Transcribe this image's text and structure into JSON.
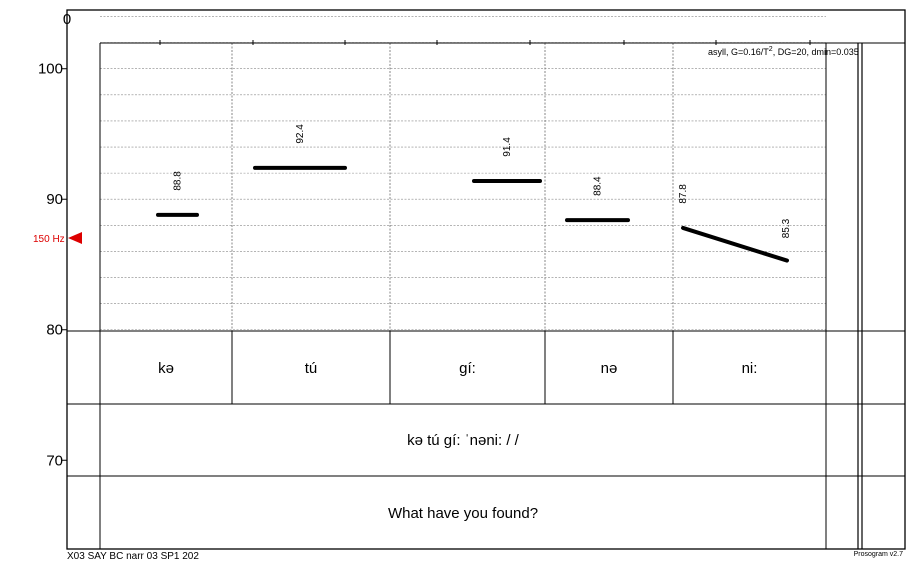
{
  "chart_data": {
    "type": "prosogram",
    "y_axis": {
      "top_tick_label": "0",
      "range": [
        63.2,
        104.5
      ],
      "tick_values": [
        70,
        80,
        90,
        100
      ],
      "tick_labels": [
        "70",
        "80",
        "90",
        "100"
      ],
      "minor_grid_step": 2
    },
    "reference_marker": {
      "label": "150 Hz",
      "value": 86.8,
      "color": "#dd0000"
    },
    "header_note": "asyll, G=0.16/T², DG=20, dmin=0.035",
    "syllables": [
      {
        "label": "kə",
        "start_value": 88.8,
        "end_value": 88.8,
        "labels": [
          "88.8"
        ]
      },
      {
        "label": "tú",
        "start_value": 92.4,
        "end_value": 92.4,
        "labels": [
          "92.4"
        ]
      },
      {
        "label": "gí:",
        "start_value": 91.4,
        "end_value": 91.4,
        "labels": [
          "91.4"
        ]
      },
      {
        "label": "nə",
        "start_value": 88.4,
        "end_value": 88.4,
        "labels": [
          "88.4"
        ]
      },
      {
        "label": "ni:",
        "start_value": 87.8,
        "end_value": 85.3,
        "labels": [
          "87.8",
          "85.3"
        ]
      }
    ],
    "transcription": "kə tú gí: ˈnəni: / /",
    "translation": "What have you found?",
    "file_label": "X03  SAY  BC  narr  03  SP1  202",
    "version_label": "Prosogram v2.7"
  }
}
